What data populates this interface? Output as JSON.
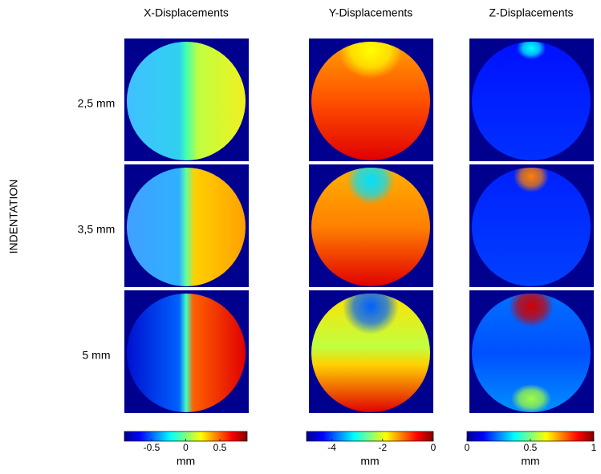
{
  "y_label": "INDENTATION",
  "rows": [
    {
      "label": "2,5  mm"
    },
    {
      "label": "3,5  mm"
    },
    {
      "label": "5 mm"
    }
  ],
  "columns": [
    {
      "title": "X-Displacements",
      "colorbar": {
        "lim": [
          -0.9,
          0.9
        ],
        "ticks": [
          -0.5,
          0,
          0.5
        ],
        "unit": "mm"
      }
    },
    {
      "title": "Y-Displacements",
      "colorbar": {
        "lim": [
          -5,
          0
        ],
        "ticks": [
          -4,
          -2,
          0
        ],
        "unit": "mm"
      }
    },
    {
      "title": "Z-Displacements",
      "colorbar": {
        "lim": [
          0,
          1
        ],
        "ticks": [
          0,
          0.5,
          1
        ],
        "unit": "mm"
      }
    }
  ]
}
